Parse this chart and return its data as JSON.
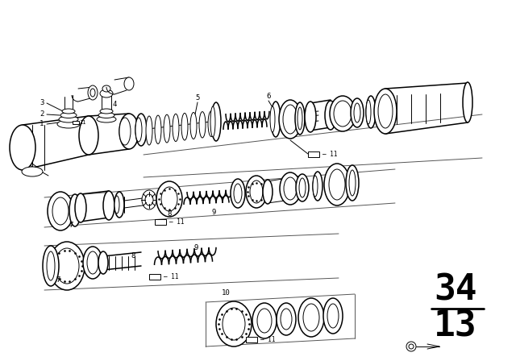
{
  "background_color": "#ffffff",
  "line_color": "#000000",
  "fig_width": 6.4,
  "fig_height": 4.48,
  "dpi": 100,
  "number_34": "34",
  "number_13": "13",
  "number_fontsize": 32,
  "top_border": "#cccccc",
  "gray": "#888888"
}
